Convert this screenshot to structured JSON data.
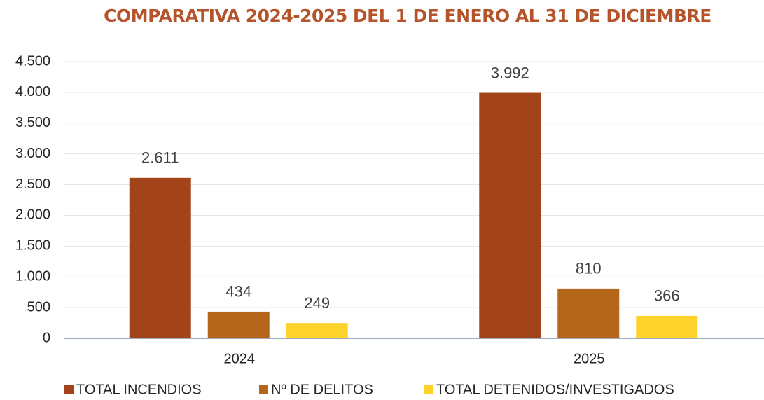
{
  "chart_data": {
    "type": "bar",
    "title": "COMPARATIVA 2024-2025 DEL 1 DE ENERO AL 31 DE DICIEMBRE",
    "categories": [
      "2024",
      "2025"
    ],
    "series": [
      {
        "name": "TOTAL INCENDIOS",
        "color": "#a3431a",
        "values": [
          2611,
          3992
        ],
        "value_labels": [
          "2.611",
          "3.992"
        ]
      },
      {
        "name": "Nº DE DELITOS",
        "color": "#b5661b",
        "values": [
          434,
          810
        ]
      },
      {
        "name": "TOTAL DETENIDOS/INVESTIGADOS",
        "color": "#fdd32c",
        "values": [
          249,
          366
        ]
      }
    ],
    "ylim": [
      0,
      4500
    ],
    "yticks": [
      0,
      500,
      {
        "value": 1000,
        "label": "1.000"
      },
      {
        "value": 1500,
        "label": "1.500"
      },
      {
        "value": 2000,
        "label": "2.000"
      },
      {
        "value": 2500,
        "label": "2.500"
      },
      {
        "value": 3000,
        "label": "3.000"
      },
      {
        "value": 3500,
        "label": "3.500"
      },
      {
        "value": 4000,
        "label": "4.000"
      },
      {
        "value": 4500,
        "label": "4.500"
      }
    ],
    "grid": true,
    "legend": "bottom"
  }
}
